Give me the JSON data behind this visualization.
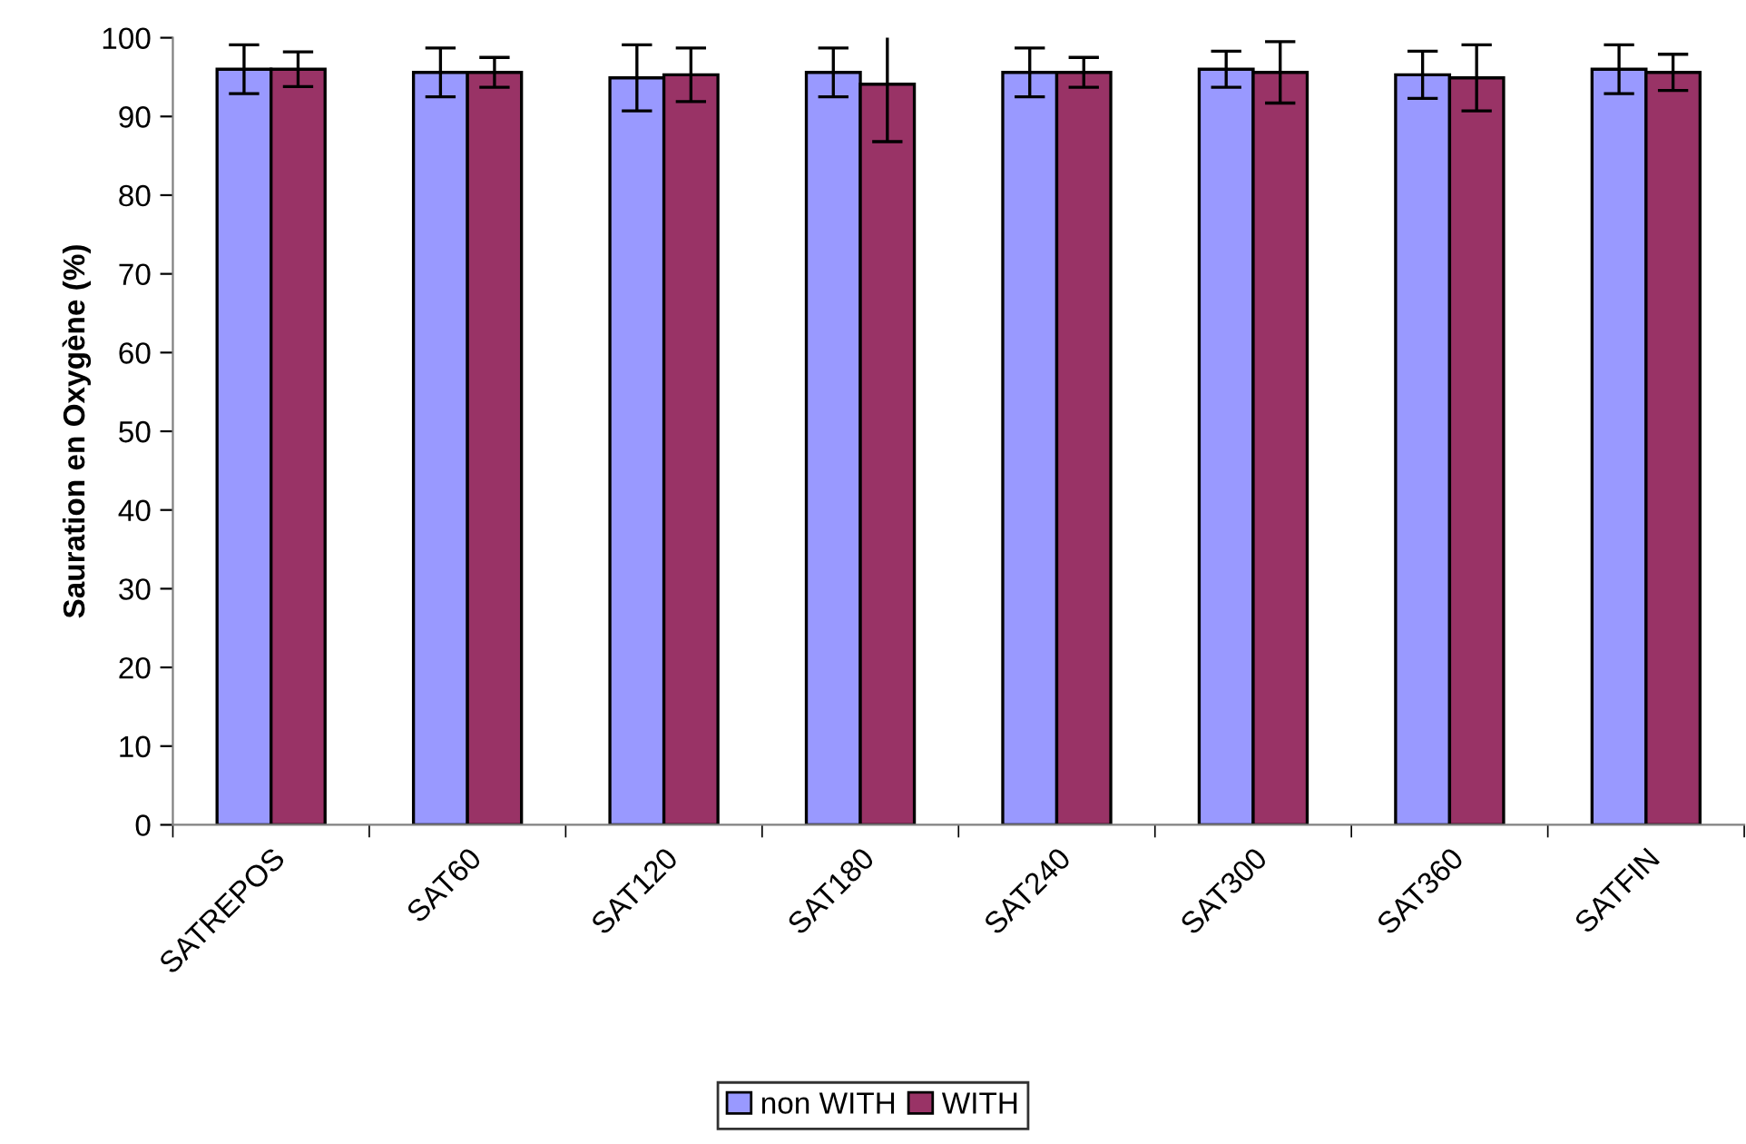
{
  "chart_data": {
    "type": "bar",
    "ylabel": "Sauration en Oxygène (%)",
    "categories": [
      "SATREPOS",
      "SAT60",
      "SAT120",
      "SAT180",
      "SAT240",
      "SAT300",
      "SAT360",
      "SATFIN"
    ],
    "series": [
      {
        "name": "non WITH",
        "color": "#9999ff",
        "values": [
          96.0,
          95.6,
          94.9,
          95.6,
          95.6,
          96.0,
          95.3,
          96.0
        ],
        "errors": [
          3.1,
          3.1,
          4.2,
          3.1,
          3.1,
          2.3,
          3.0,
          3.1
        ]
      },
      {
        "name": "WITH",
        "color": "#993366",
        "values": [
          96.0,
          95.6,
          95.3,
          94.1,
          95.6,
          95.6,
          94.9,
          95.6
        ],
        "errors": [
          2.2,
          1.9,
          3.4,
          7.3,
          1.9,
          3.9,
          4.2,
          2.3
        ]
      }
    ],
    "ylim": [
      0,
      100
    ],
    "yticks": [
      0,
      10,
      20,
      30,
      40,
      50,
      60,
      70,
      80,
      90,
      100
    ],
    "grid": false,
    "legend": "bottom"
  }
}
